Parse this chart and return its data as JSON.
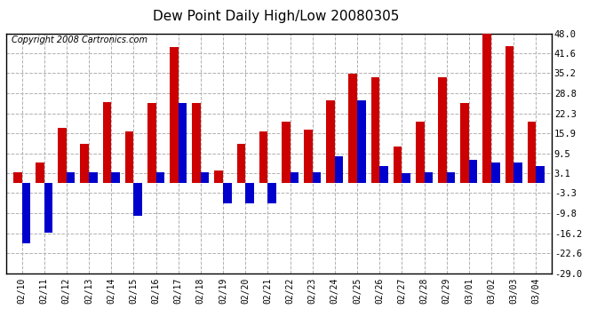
{
  "title": "Dew Point Daily High/Low 20080305",
  "copyright": "Copyright 2008 Cartronics.com",
  "dates": [
    "02/10",
    "02/11",
    "02/12",
    "02/13",
    "02/14",
    "02/15",
    "02/16",
    "02/17",
    "02/18",
    "02/19",
    "02/20",
    "02/21",
    "02/22",
    "02/23",
    "02/24",
    "02/25",
    "02/26",
    "02/27",
    "02/28",
    "02/29",
    "03/01",
    "03/02",
    "03/03",
    "03/04"
  ],
  "highs": [
    3.5,
    6.5,
    17.5,
    12.5,
    26.0,
    16.5,
    25.5,
    43.5,
    25.5,
    4.0,
    12.5,
    16.5,
    19.5,
    17.0,
    26.5,
    35.0,
    34.0,
    11.5,
    19.5,
    34.0,
    25.5,
    48.0,
    44.0,
    19.5
  ],
  "lows": [
    -19.5,
    -16.0,
    3.5,
    3.5,
    3.5,
    -10.5,
    3.5,
    25.5,
    3.5,
    -6.5,
    -6.5,
    -6.5,
    3.5,
    3.5,
    8.5,
    26.5,
    5.5,
    3.0,
    3.5,
    3.5,
    7.5,
    6.5,
    6.5,
    5.5
  ],
  "high_color": "#cc0000",
  "low_color": "#0000cc",
  "bg_color": "#ffffff",
  "grid_color": "#b0b0b0",
  "title_fontsize": 11,
  "copyright_fontsize": 7,
  "ylim": [
    -29.0,
    48.0
  ],
  "ytick_labels": [
    "48.0",
    "41.6",
    "35.2",
    "28.8",
    "22.3",
    "15.9",
    "9.5",
    "3.1",
    "-3.3",
    "-9.8",
    "-16.2",
    "-22.6",
    "-29.0"
  ],
  "ytick_values": [
    48.0,
    41.6,
    35.2,
    28.8,
    22.3,
    15.9,
    9.5,
    3.1,
    -3.3,
    -9.8,
    -16.2,
    -22.6,
    -29.0
  ]
}
